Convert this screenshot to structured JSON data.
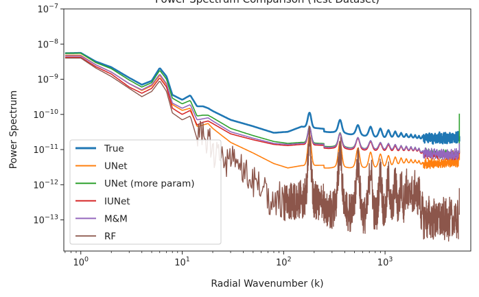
{
  "chart_data": {
    "type": "line",
    "title": "Power Spectrum Comparison (Test Dataset)",
    "xlabel": "Radial Wavenumber (k)",
    "ylabel": "Power Spectrum",
    "xscale": "log",
    "yscale": "log",
    "xlim": [
      0.68,
      7000
    ],
    "ylim": [
      1.3e-14,
      1e-07
    ],
    "x_ticks": [
      {
        "value": 1,
        "exp": "0"
      },
      {
        "value": 10,
        "exp": "1"
      },
      {
        "value": 100,
        "exp": "2"
      },
      {
        "value": 1000,
        "exp": "3"
      }
    ],
    "y_ticks": [
      {
        "value": 1e-13,
        "exp": "−13"
      },
      {
        "value": 1e-12,
        "exp": "−12"
      },
      {
        "value": 1e-11,
        "exp": "−11"
      },
      {
        "value": 1e-10,
        "exp": "−10"
      },
      {
        "value": 1e-09,
        "exp": "−9"
      },
      {
        "value": 1e-08,
        "exp": "−8"
      },
      {
        "value": 1e-07,
        "exp": "−7"
      }
    ],
    "legend_position": "lower-left",
    "series": [
      {
        "name": "True",
        "color": "#1f77b4",
        "width": 2.6,
        "profile": [
          [
            0.7,
            5.5e-09
          ],
          [
            1.0,
            5.6e-09
          ],
          [
            1.4,
            3.2e-09
          ],
          [
            2.0,
            2.2e-09
          ],
          [
            3.0,
            1.1e-09
          ],
          [
            4.0,
            7e-10
          ],
          [
            5.0,
            9e-10
          ],
          [
            6.0,
            2.1e-09
          ],
          [
            7.0,
            1.2e-09
          ],
          [
            8.0,
            3.6e-10
          ],
          [
            10.0,
            2.6e-10
          ],
          [
            12.0,
            3.5e-10
          ],
          [
            14.0,
            1.7e-10
          ],
          [
            16.0,
            1.7e-10
          ],
          [
            18.0,
            1.5e-10
          ],
          [
            20.0,
            1.25e-10
          ],
          [
            30.0,
            7e-11
          ],
          [
            50.0,
            4.6e-11
          ],
          [
            80.0,
            3e-11
          ],
          [
            110.0,
            3.2e-11
          ],
          [
            150.0,
            4.5e-11
          ],
          [
            1000.0,
            2.6e-11
          ],
          [
            3000.0,
            2.4e-11
          ],
          [
            5300.0,
            2.4e-11
          ]
        ],
        "peaks": [
          [
            180,
            1.12e-10
          ],
          [
            360,
            7e-11
          ],
          [
            540,
            5e-11
          ],
          [
            720,
            4.5e-11
          ],
          [
            900,
            4e-11
          ],
          [
            1080,
            3.6e-11
          ],
          [
            1260,
            3.3e-11
          ],
          [
            1440,
            3e-11
          ],
          [
            1620,
            2.8e-11
          ],
          [
            1800,
            2.7e-11
          ],
          [
            1980,
            2.6e-11
          ],
          [
            2160,
            2.5e-11
          ]
        ],
        "noise_start": 2400,
        "noise": 0.14,
        "end_spike": {
          "x": 5400,
          "y": 1.7e-11
        }
      },
      {
        "name": "UNet",
        "color": "#ff7f0e",
        "width": 1.6,
        "profile": [
          [
            0.7,
            4.8e-09
          ],
          [
            1.0,
            4.8e-09
          ],
          [
            1.4,
            2.6e-09
          ],
          [
            2.0,
            1.6e-09
          ],
          [
            3.0,
            7.5e-10
          ],
          [
            4.0,
            4.8e-10
          ],
          [
            5.0,
            6.5e-10
          ],
          [
            6.0,
            1.3e-09
          ],
          [
            7.0,
            7e-10
          ],
          [
            8.0,
            1.9e-10
          ],
          [
            10.0,
            1.3e-10
          ],
          [
            12.0,
            1.5e-10
          ],
          [
            14.0,
            4.5e-11
          ],
          [
            16.0,
            5e-11
          ],
          [
            18.0,
            5.5e-11
          ],
          [
            20.0,
            4e-11
          ],
          [
            30.0,
            1.6e-11
          ],
          [
            50.0,
            8e-12
          ],
          [
            80.0,
            4e-12
          ],
          [
            110.0,
            3e-12
          ],
          [
            150.0,
            3.5e-12
          ],
          [
            1000.0,
            3.8e-12
          ],
          [
            3000.0,
            4.5e-12
          ],
          [
            5300.0,
            5e-12
          ]
        ],
        "peaks": [
          [
            180,
            2.6e-11
          ],
          [
            360,
            1.7e-11
          ],
          [
            540,
            1.1e-11
          ],
          [
            720,
            8.5e-12
          ],
          [
            900,
            7.5e-12
          ],
          [
            1080,
            6.8e-12
          ],
          [
            1260,
            6.2e-12
          ],
          [
            1440,
            5.8e-12
          ],
          [
            1620,
            5.5e-12
          ],
          [
            1800,
            5.2e-12
          ],
          [
            1980,
            5e-12
          ],
          [
            2160,
            4.9e-12
          ]
        ],
        "noise_start": 2400,
        "noise": 0.12,
        "end_spike": {
          "x": 5400,
          "y": 1e-11
        }
      },
      {
        "name": "UNet (more param)",
        "color": "#2ca02c",
        "width": 1.6,
        "profile": [
          [
            0.7,
            5.5e-09
          ],
          [
            1.0,
            5.5e-09
          ],
          [
            1.4,
            3e-09
          ],
          [
            2.0,
            2e-09
          ],
          [
            3.0,
            9.5e-10
          ],
          [
            4.0,
            6e-10
          ],
          [
            5.0,
            8e-10
          ],
          [
            6.0,
            1.8e-09
          ],
          [
            7.0,
            1e-09
          ],
          [
            8.0,
            2.9e-10
          ],
          [
            10.0,
            2e-10
          ],
          [
            12.0,
            2.5e-10
          ],
          [
            14.0,
            9e-11
          ],
          [
            16.0,
            9.5e-11
          ],
          [
            18.0,
            9.5e-11
          ],
          [
            20.0,
            8e-11
          ],
          [
            30.0,
            4e-11
          ],
          [
            50.0,
            2.5e-11
          ],
          [
            80.0,
            1.7e-11
          ],
          [
            110.0,
            1.5e-11
          ],
          [
            150.0,
            1.6e-11
          ],
          [
            1000.0,
            1.2e-11
          ],
          [
            3000.0,
            8.5e-12
          ],
          [
            5300.0,
            8e-12
          ]
        ],
        "peaks": [
          [
            180,
            4.5e-11
          ],
          [
            360,
            3e-11
          ],
          [
            540,
            2.2e-11
          ],
          [
            720,
            1.8e-11
          ],
          [
            900,
            1.6e-11
          ],
          [
            1080,
            1.5e-11
          ],
          [
            1260,
            1.4e-11
          ],
          [
            1440,
            1.3e-11
          ],
          [
            1620,
            1.25e-11
          ],
          [
            1800,
            1.2e-11
          ],
          [
            1980,
            1.15e-11
          ],
          [
            2160,
            1.1e-11
          ]
        ],
        "noise_start": 2400,
        "noise": 0.1,
        "end_spike": {
          "x": 5400,
          "y": 1.05e-10
        }
      },
      {
        "name": "IUNet",
        "color": "#d62728",
        "width": 1.6,
        "profile": [
          [
            0.7,
            4.2e-09
          ],
          [
            1.0,
            4.2e-09
          ],
          [
            1.4,
            2.3e-09
          ],
          [
            2.0,
            1.4e-09
          ],
          [
            3.0,
            6e-10
          ],
          [
            4.0,
            4e-10
          ],
          [
            5.0,
            5.5e-10
          ],
          [
            6.0,
            1.1e-09
          ],
          [
            7.0,
            6e-10
          ],
          [
            8.0,
            1.5e-10
          ],
          [
            10.0,
            1e-10
          ],
          [
            12.0,
            1.3e-10
          ],
          [
            14.0,
            5e-11
          ],
          [
            16.0,
            6e-11
          ],
          [
            18.0,
            6.5e-11
          ],
          [
            20.0,
            5.5e-11
          ],
          [
            30.0,
            2.8e-11
          ],
          [
            50.0,
            1.9e-11
          ],
          [
            80.0,
            1.4e-11
          ],
          [
            110.0,
            1.3e-11
          ],
          [
            150.0,
            1.4e-11
          ],
          [
            1000.0,
            1.1e-11
          ],
          [
            3000.0,
            8e-12
          ],
          [
            5300.0,
            7.5e-12
          ]
        ],
        "peaks": [
          [
            180,
            4.2e-11
          ],
          [
            360,
            2.8e-11
          ],
          [
            540,
            2.1e-11
          ],
          [
            720,
            1.7e-11
          ],
          [
            900,
            1.5e-11
          ],
          [
            1080,
            1.4e-11
          ],
          [
            1260,
            1.3e-11
          ],
          [
            1440,
            1.25e-11
          ],
          [
            1620,
            1.2e-11
          ],
          [
            1800,
            1.15e-11
          ],
          [
            1980,
            1.1e-11
          ],
          [
            2160,
            1.05e-11
          ]
        ],
        "noise_start": 2400,
        "noise": 0.1,
        "end_spike": {
          "x": 5400,
          "y": 9e-12
        }
      },
      {
        "name": "M&M",
        "color": "#9467bd",
        "width": 1.6,
        "profile": [
          [
            0.7,
            4.6e-09
          ],
          [
            1.0,
            4.6e-09
          ],
          [
            1.4,
            2.6e-09
          ],
          [
            2.0,
            1.6e-09
          ],
          [
            3.0,
            7.5e-10
          ],
          [
            4.0,
            5e-10
          ],
          [
            5.0,
            7e-10
          ],
          [
            6.0,
            1.4e-09
          ],
          [
            7.0,
            7.5e-10
          ],
          [
            8.0,
            2.1e-10
          ],
          [
            10.0,
            1.5e-10
          ],
          [
            12.0,
            1.9e-10
          ],
          [
            14.0,
            7e-11
          ],
          [
            16.0,
            7.5e-11
          ],
          [
            18.0,
            8e-11
          ],
          [
            20.0,
            6.5e-11
          ],
          [
            30.0,
            3.2e-11
          ],
          [
            50.0,
            2.1e-11
          ],
          [
            80.0,
            1.5e-11
          ],
          [
            110.0,
            1.4e-11
          ],
          [
            150.0,
            1.5e-11
          ],
          [
            1000.0,
            1.2e-11
          ],
          [
            3000.0,
            8.5e-12
          ],
          [
            5300.0,
            8e-12
          ]
        ],
        "peaks": [
          [
            180,
            4.4e-11
          ],
          [
            360,
            2.9e-11
          ],
          [
            540,
            2.2e-11
          ],
          [
            720,
            1.8e-11
          ],
          [
            900,
            1.6e-11
          ],
          [
            1080,
            1.5e-11
          ],
          [
            1260,
            1.4e-11
          ],
          [
            1440,
            1.3e-11
          ],
          [
            1620,
            1.25e-11
          ],
          [
            1800,
            1.2e-11
          ],
          [
            1980,
            1.15e-11
          ],
          [
            2160,
            1.1e-11
          ]
        ],
        "noise_start": 2400,
        "noise": 0.13,
        "end_spike": {
          "x": 5400,
          "y": 1.5e-11
        }
      },
      {
        "name": "RF",
        "color": "#8c564b",
        "width": 1.4,
        "profile": [
          [
            0.7,
            4e-09
          ],
          [
            1.0,
            4e-09
          ],
          [
            1.4,
            2.1e-09
          ],
          [
            2.0,
            1.2e-09
          ],
          [
            3.0,
            5.5e-10
          ],
          [
            4.0,
            3.2e-10
          ],
          [
            5.0,
            4.5e-10
          ],
          [
            6.0,
            9e-10
          ],
          [
            7.0,
            4.5e-10
          ],
          [
            8.0,
            1.1e-10
          ],
          [
            10.0,
            7e-11
          ],
          [
            12.0,
            9e-11
          ],
          [
            14.0,
            2e-11
          ],
          [
            16.0,
            1.8e-11
          ],
          [
            18.0,
            1.6e-11
          ],
          [
            20.0,
            1.1e-11
          ],
          [
            30.0,
            4e-12
          ],
          [
            50.0,
            1.2e-12
          ],
          [
            80.0,
            4e-13
          ],
          [
            110.0,
            3e-13
          ],
          [
            150.0,
            4e-13
          ],
          [
            400.0,
            2.8e-13
          ],
          [
            1000.0,
            2e-13
          ],
          [
            3000.0,
            1.5e-13
          ],
          [
            5300.0,
            1.4e-13
          ]
        ],
        "peaks": [
          [
            180,
            2e-11
          ],
          [
            360,
            1.2e-11
          ],
          [
            540,
            5e-12
          ],
          [
            720,
            3e-12
          ],
          [
            900,
            2e-12
          ],
          [
            1080,
            1.5e-12
          ],
          [
            1260,
            1.2e-12
          ],
          [
            1440,
            1e-12
          ],
          [
            1620,
            9e-13
          ],
          [
            1800,
            8e-13
          ],
          [
            1980,
            7e-13
          ],
          [
            2160,
            6.5e-13
          ]
        ],
        "noise_start": 14,
        "noise": 0.55,
        "end_spike": {
          "x": 5400,
          "y": 8e-13
        }
      }
    ]
  }
}
